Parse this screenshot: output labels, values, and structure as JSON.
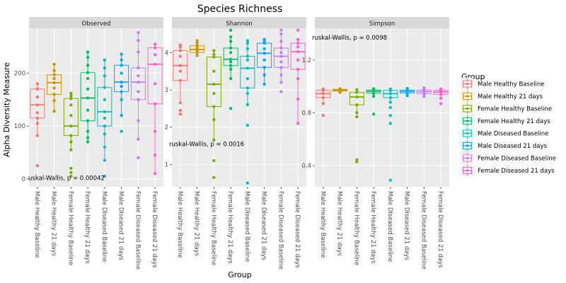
{
  "chart_data": {
    "type": "boxplot",
    "title": "Species Richness",
    "xlabel": "Group",
    "ylabel": "Alpha Diversity Measure",
    "legend": {
      "title": "Group",
      "placement": "right"
    },
    "groups": [
      {
        "name": "Male Healthy Baseline",
        "color": "#F8766D"
      },
      {
        "name": "Male Healthy 21 days",
        "color": "#CD9600"
      },
      {
        "name": "Female Healthy Baseline",
        "color": "#7CAE00"
      },
      {
        "name": "Female Healthy 21 days",
        "color": "#00BE67"
      },
      {
        "name": "Male Diseased Baseline",
        "color": "#00BFC4"
      },
      {
        "name": "Male Diseased 21 days",
        "color": "#00A9FF"
      },
      {
        "name": "Female Diseased Baseline",
        "color": "#C77CFF"
      },
      {
        "name": "Female Diseased 21 days",
        "color": "#FF61CC"
      }
    ],
    "panels": [
      {
        "name": "Observed",
        "ylim": [
          -15,
          285
        ],
        "yticks": [
          0,
          100,
          200
        ],
        "annotation": "uskal-Wallis, p = 0.00042",
        "annotation_at": {
          "x": 0.55,
          "y": 2
        },
        "boxes": [
          {
            "q1": 115,
            "median": 140,
            "q3": 170,
            "wlo": 82,
            "whi": 180,
            "points": [
              25,
              82,
              105,
              115,
              125,
              140,
              155,
              170,
              180
            ]
          },
          {
            "q1": 160,
            "median": 182,
            "q3": 197,
            "wlo": 128,
            "whi": 217,
            "points": [
              128,
              148,
              160,
              172,
              182,
              190,
              197,
              205,
              217
            ]
          },
          {
            "q1": 82,
            "median": 100,
            "q3": 152,
            "wlo": 55,
            "whi": 162,
            "points": [
              5,
              12,
              20,
              55,
              70,
              82,
              100,
              120,
              140,
              152,
              157,
              162
            ]
          },
          {
            "q1": 110,
            "median": 153,
            "q3": 201,
            "wlo": 70,
            "whi": 240,
            "points": [
              70,
              78,
              90,
              110,
              130,
              153,
              170,
              190,
              201,
              215,
              230,
              240
            ]
          },
          {
            "q1": 100,
            "median": 127,
            "q3": 173,
            "wlo": 35,
            "whi": 225,
            "points": [
              5,
              35,
              60,
              85,
              100,
              115,
              127,
              150,
              173,
              195,
              210,
              225
            ]
          },
          {
            "q1": 165,
            "median": 183,
            "q3": 215,
            "wlo": 120,
            "whi": 236,
            "points": [
              90,
              120,
              150,
              165,
              175,
              183,
              200,
              215,
              225,
              236
            ]
          },
          {
            "q1": 150,
            "median": 183,
            "q3": 210,
            "wlo": 75,
            "whi": 277,
            "points": [
              40,
              75,
              110,
              150,
              165,
              183,
              195,
              210,
              240,
              262,
              277
            ]
          },
          {
            "q1": 142,
            "median": 217,
            "q3": 248,
            "wlo": 10,
            "whi": 255,
            "points": [
              10,
              45,
              90,
              142,
              180,
              217,
              235,
              248,
              255
            ]
          }
        ]
      },
      {
        "name": "Shannon",
        "ylim": [
          0.4,
          4.65
        ],
        "yticks": [
          1,
          2,
          3,
          4
        ],
        "annotation": "ruskal-Wallis, p = 0.0016",
        "annotation_at": {
          "x": 0.55,
          "y": 1.55
        },
        "boxes": [
          {
            "q1": 3.25,
            "median": 3.65,
            "q3": 4.05,
            "wlo": 2.65,
            "whi": 4.2,
            "points": [
              2.35,
              2.45,
              2.65,
              3.25,
              3.5,
              3.65,
              3.9,
              4.05,
              4.15,
              4.2
            ]
          },
          {
            "q1": 4.0,
            "median": 4.08,
            "q3": 4.18,
            "wlo": 3.92,
            "whi": 4.32,
            "points": [
              3.92,
              4.0,
              4.05,
              4.08,
              4.12,
              4.18,
              4.25,
              4.32
            ]
          },
          {
            "q1": 2.55,
            "median": 3.15,
            "q3": 3.88,
            "wlo": 1.65,
            "whi": 4.05,
            "points": [
              0.65,
              1.1,
              1.65,
              2.2,
              2.55,
              2.9,
              3.15,
              3.5,
              3.88,
              3.95,
              4.05
            ]
          },
          {
            "q1": 3.65,
            "median": 3.82,
            "q3": 4.12,
            "wlo": 3.3,
            "whi": 4.42,
            "points": [
              2.5,
              3.3,
              3.55,
              3.65,
              3.75,
              3.82,
              4.0,
              4.12,
              4.3,
              4.42,
              4.6
            ]
          },
          {
            "q1": 3.05,
            "median": 3.58,
            "q3": 3.9,
            "wlo": 2.6,
            "whi": 4.32,
            "points": [
              0.5,
              2.05,
              2.6,
              2.9,
              3.05,
              3.3,
              3.58,
              3.8,
              3.9,
              4.1,
              4.25,
              4.32
            ]
          },
          {
            "q1": 3.6,
            "median": 3.98,
            "q3": 4.25,
            "wlo": 3.15,
            "whi": 4.35,
            "points": [
              3.15,
              3.4,
              3.6,
              3.8,
              3.98,
              4.1,
              4.25,
              4.3,
              4.35
            ]
          },
          {
            "q1": 3.6,
            "median": 3.9,
            "q3": 4.12,
            "wlo": 3.2,
            "whi": 4.5,
            "points": [
              2.95,
              3.2,
              3.4,
              3.6,
              3.75,
              3.9,
              4.0,
              4.12,
              4.3,
              4.5,
              4.6
            ]
          },
          {
            "q1": 3.55,
            "median": 4.02,
            "q3": 4.25,
            "wlo": 2.1,
            "whi": 4.35,
            "points": [
              2.1,
              2.75,
              3.3,
              3.55,
              3.8,
              4.02,
              4.15,
              4.25,
              4.35,
              4.6
            ]
          }
        ]
      },
      {
        "name": "Simpson",
        "ylim": [
          0.24,
          1.44
        ],
        "yticks": [
          0.4,
          0.8,
          1.2
        ],
        "annotation": "ruskal-Wallis, p = 0.0098",
        "annotation_at": {
          "x": 0.55,
          "y": 1.37
        },
        "boxes": [
          {
            "q1": 0.915,
            "median": 0.945,
            "q3": 0.97,
            "wlo": 0.87,
            "whi": 0.98,
            "points": [
              0.78,
              0.87,
              0.915,
              0.945,
              0.97,
              0.98
            ]
          },
          {
            "q1": 0.965,
            "median": 0.972,
            "q3": 0.978,
            "wlo": 0.955,
            "whi": 0.982,
            "points": [
              0.955,
              0.965,
              0.972,
              0.978,
              0.982
            ]
          },
          {
            "q1": 0.86,
            "median": 0.92,
            "q3": 0.955,
            "wlo": 0.8,
            "whi": 0.975,
            "points": [
              0.43,
              0.445,
              0.77,
              0.8,
              0.86,
              0.92,
              0.955,
              0.975
            ]
          },
          {
            "q1": 0.948,
            "median": 0.962,
            "q3": 0.972,
            "wlo": 0.925,
            "whi": 0.982,
            "points": [
              0.79,
              0.925,
              0.948,
              0.962,
              0.972,
              0.982
            ]
          },
          {
            "q1": 0.915,
            "median": 0.945,
            "q3": 0.97,
            "wlo": 0.88,
            "whi": 0.98,
            "points": [
              0.29,
              0.72,
              0.78,
              0.84,
              0.88,
              0.915,
              0.945,
              0.97,
              0.98
            ]
          },
          {
            "q1": 0.95,
            "median": 0.962,
            "q3": 0.972,
            "wlo": 0.93,
            "whi": 0.985,
            "points": [
              0.93,
              0.95,
              0.962,
              0.972,
              0.985
            ]
          },
          {
            "q1": 0.945,
            "median": 0.96,
            "q3": 0.972,
            "wlo": 0.925,
            "whi": 0.988,
            "points": [
              0.925,
              0.945,
              0.96,
              0.972,
              0.988
            ]
          },
          {
            "q1": 0.94,
            "median": 0.958,
            "q3": 0.97,
            "wlo": 0.91,
            "whi": 0.98,
            "points": [
              0.87,
              0.91,
              0.94,
              0.958,
              0.97,
              0.98
            ]
          }
        ]
      }
    ]
  }
}
